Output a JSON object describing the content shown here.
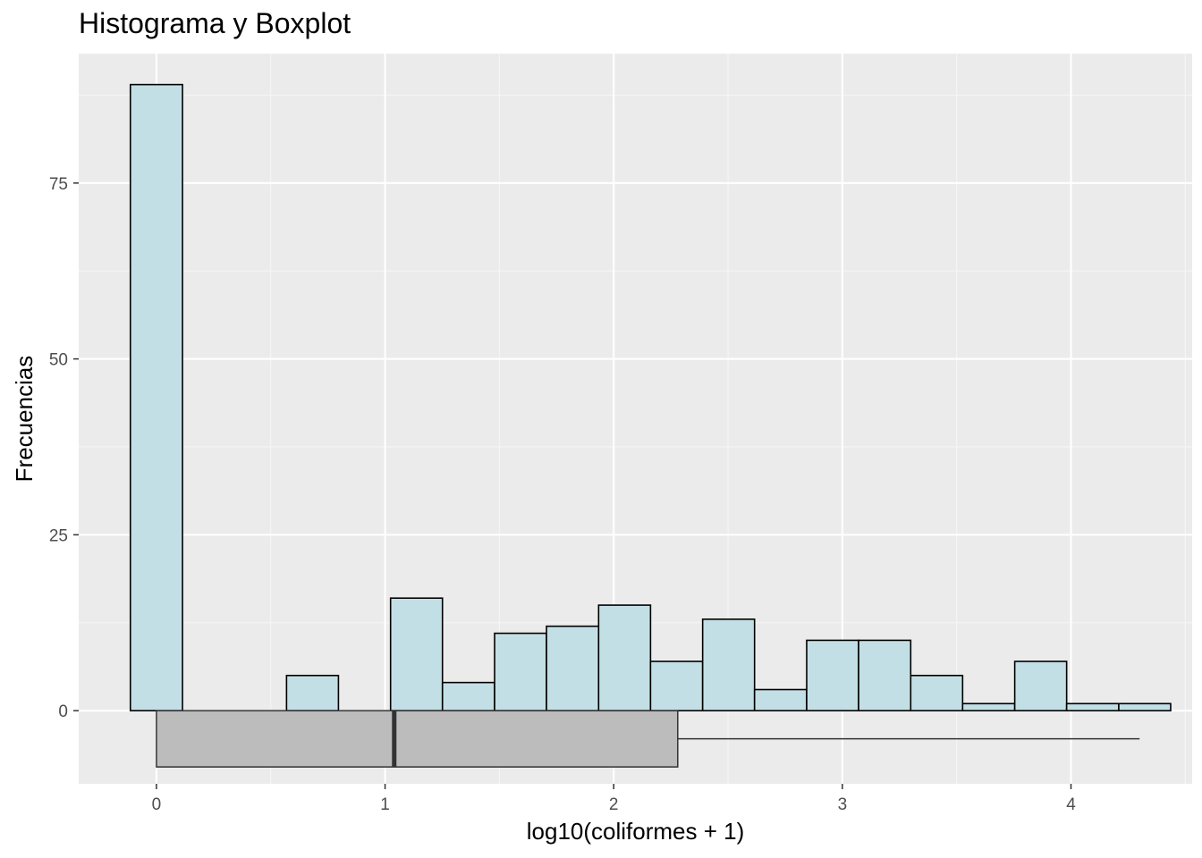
{
  "chart_data": {
    "type": "bar",
    "title": "Histograma y Boxplot",
    "xlabel": "log10(coliformes + 1)",
    "ylabel": "Frecuencias",
    "xlim": [
      -0.34,
      4.53
    ],
    "ylim": [
      -10.4,
      93.4
    ],
    "x_ticks": [
      0,
      1,
      2,
      3,
      4
    ],
    "y_ticks": [
      0,
      25,
      50,
      75
    ],
    "bin_width": 0.2275,
    "bins": [
      {
        "x0": -0.114,
        "x1": 0.114,
        "count": 89
      },
      {
        "x0": 0.114,
        "x1": 0.341,
        "count": 0
      },
      {
        "x0": 0.341,
        "x1": 0.569,
        "count": 0
      },
      {
        "x0": 0.569,
        "x1": 0.796,
        "count": 5
      },
      {
        "x0": 0.796,
        "x1": 1.024,
        "count": 0
      },
      {
        "x0": 1.024,
        "x1": 1.251,
        "count": 16
      },
      {
        "x0": 1.251,
        "x1": 1.479,
        "count": 4
      },
      {
        "x0": 1.479,
        "x1": 1.706,
        "count": 11
      },
      {
        "x0": 1.706,
        "x1": 1.934,
        "count": 12
      },
      {
        "x0": 1.934,
        "x1": 2.161,
        "count": 15
      },
      {
        "x0": 2.161,
        "x1": 2.389,
        "count": 7
      },
      {
        "x0": 2.389,
        "x1": 2.616,
        "count": 13
      },
      {
        "x0": 2.616,
        "x1": 2.844,
        "count": 3
      },
      {
        "x0": 2.844,
        "x1": 3.071,
        "count": 10
      },
      {
        "x0": 3.071,
        "x1": 3.299,
        "count": 10
      },
      {
        "x0": 3.299,
        "x1": 3.526,
        "count": 5
      },
      {
        "x0": 3.526,
        "x1": 3.754,
        "count": 1
      },
      {
        "x0": 3.754,
        "x1": 3.981,
        "count": 7
      },
      {
        "x0": 3.981,
        "x1": 4.209,
        "count": 1
      },
      {
        "x0": 4.209,
        "x1": 4.436,
        "count": 1
      }
    ],
    "boxplot": {
      "min": 0,
      "q1": 0,
      "median": 1.04,
      "q3": 2.28,
      "max": 4.3,
      "y_center": -4,
      "y_halfheight": 4
    },
    "grid": true,
    "legend": "none",
    "colors": {
      "panel_bg": "#ebebeb",
      "grid_major": "#ffffff",
      "grid_minor": "#f5f5f5",
      "bar_fill": "#c3dfe6",
      "bar_stroke": "#000000",
      "box_fill": "#bcbcbc",
      "box_stroke": "#333333",
      "tick_text": "#4d4d4d",
      "tick_mark": "#333333"
    }
  }
}
